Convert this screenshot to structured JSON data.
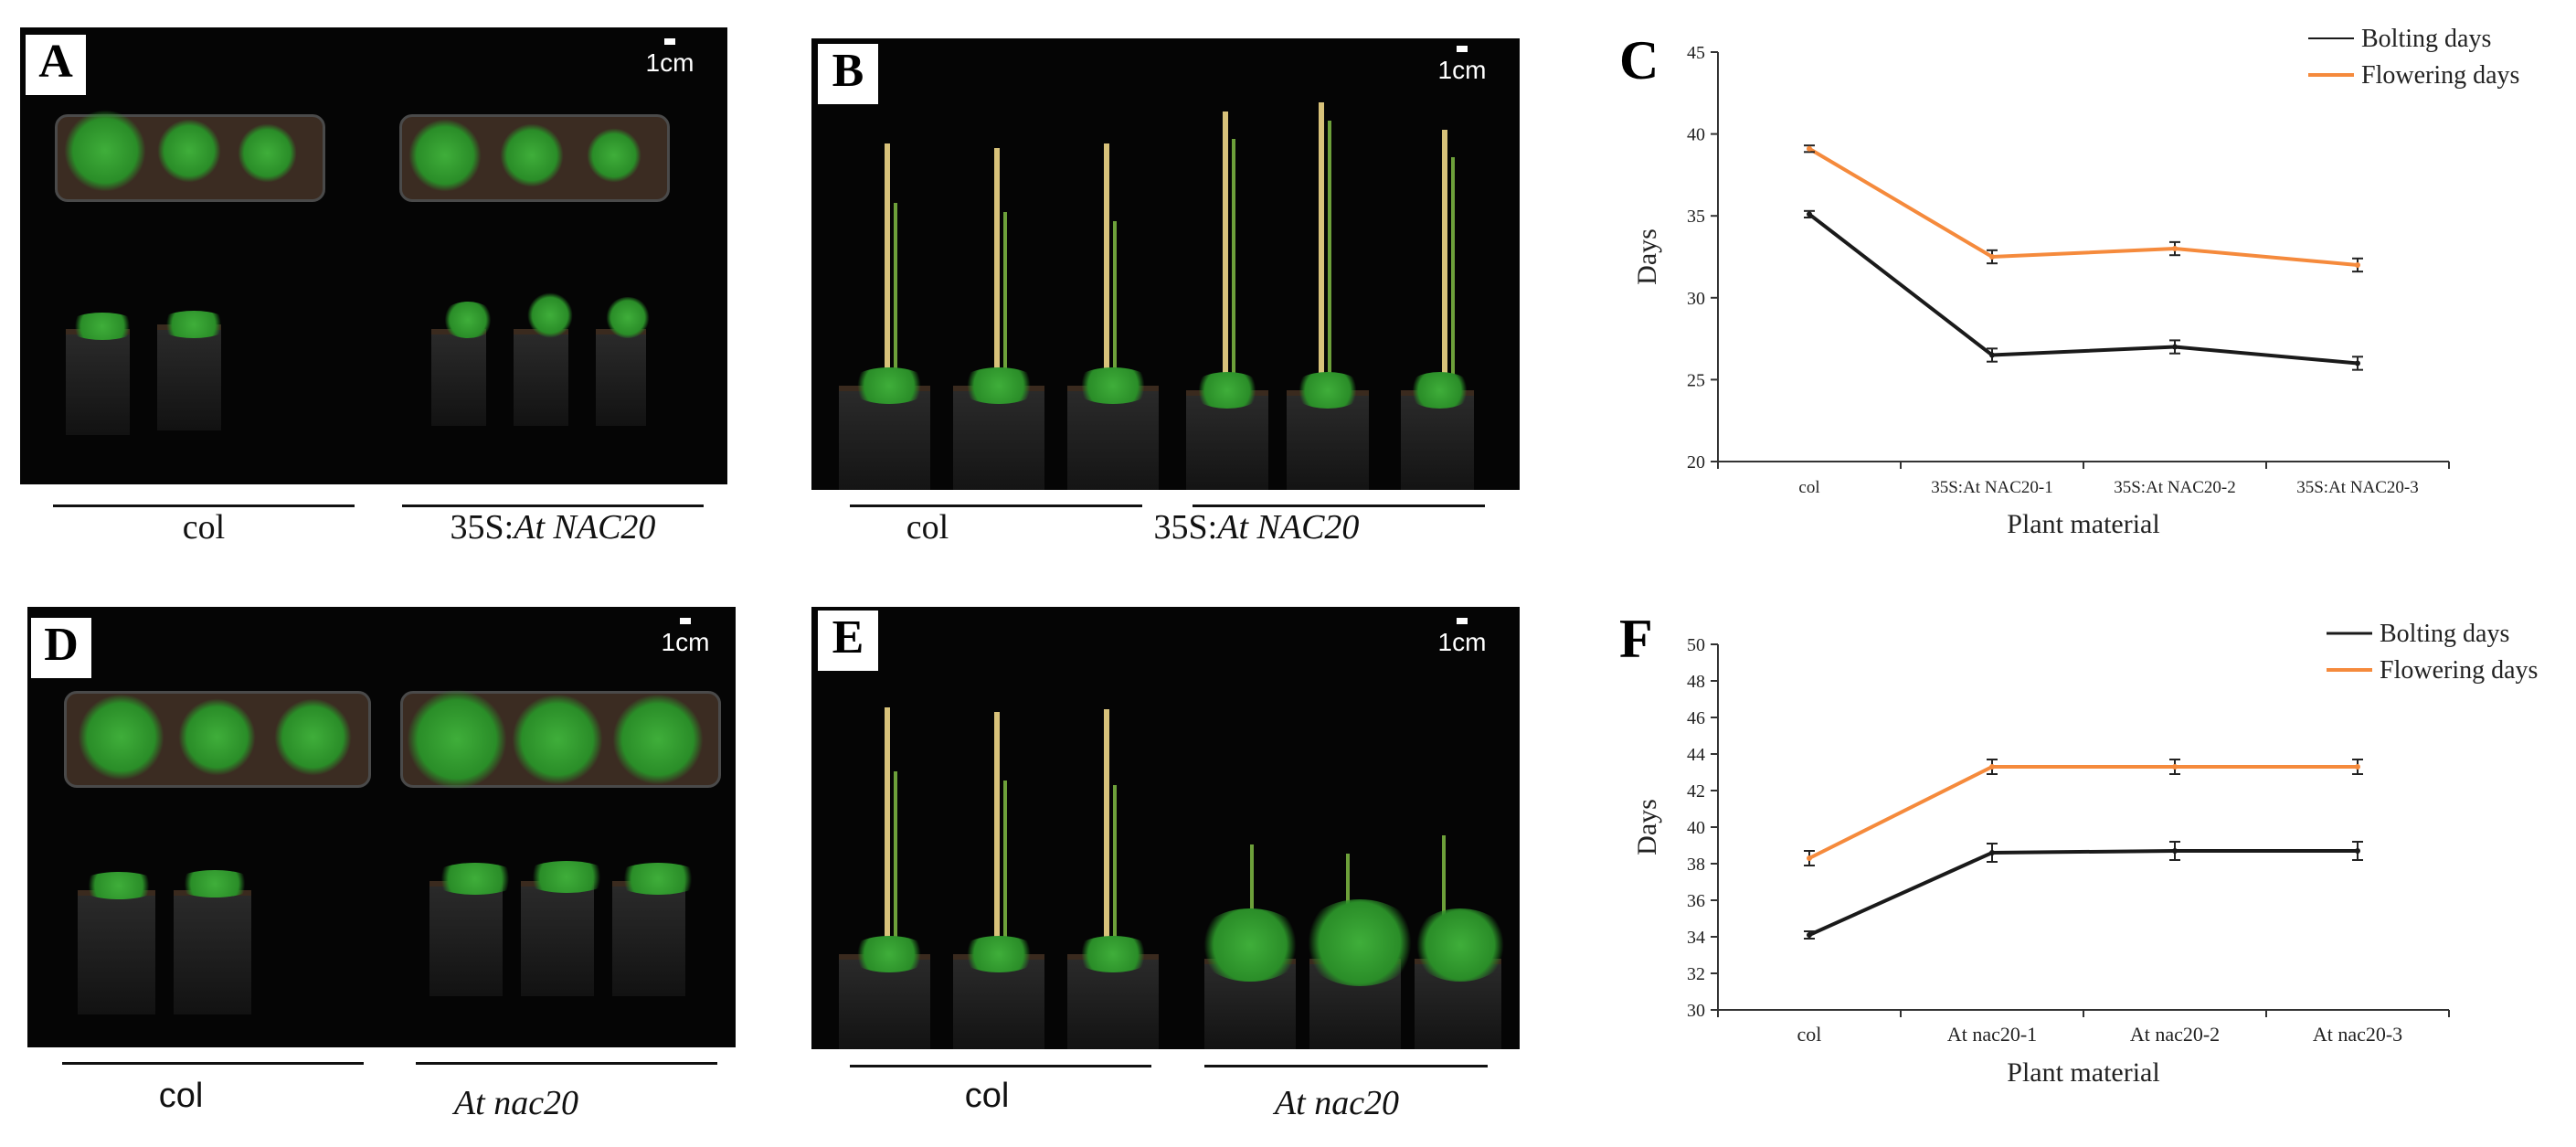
{
  "panels": {
    "A": {
      "letter": "A",
      "scale": "1cm",
      "left_caption": "col",
      "right_caption_prefix": "35S:",
      "right_caption_italic": "At NAC20"
    },
    "B": {
      "letter": "B",
      "scale": "1cm",
      "left_caption": "col",
      "right_caption_prefix": "35S:",
      "right_caption_italic": "At NAC20"
    },
    "D": {
      "letter": "D",
      "scale": "1cm",
      "left_caption": "col",
      "right_caption_italic": "At nac20"
    },
    "E": {
      "letter": "E",
      "scale": "1cm",
      "left_caption": "col",
      "right_caption_italic": "At nac20"
    }
  },
  "chart_data": [
    {
      "panel": "C",
      "type": "line",
      "xlabel": "Plant material",
      "ylabel": "Days",
      "ylim": [
        20,
        45
      ],
      "yticks": [
        20,
        25,
        30,
        35,
        40,
        45
      ],
      "categories": [
        "col",
        "35S:At NAC20-1",
        "35S:At NAC20-2",
        "35S:At NAC20-3"
      ],
      "series": [
        {
          "name": "Bolting days",
          "color": "#1a1a1a",
          "values": [
            35.1,
            26.5,
            27.0,
            26.0
          ],
          "errors": [
            0.2,
            0.4,
            0.4,
            0.4
          ]
        },
        {
          "name": "Flowering days",
          "color": "#f58a3c",
          "values": [
            39.1,
            32.5,
            33.0,
            32.0
          ],
          "errors": [
            0.2,
            0.4,
            0.4,
            0.4
          ]
        }
      ],
      "legend": "top-right"
    },
    {
      "panel": "F",
      "type": "line",
      "xlabel": "Plant material",
      "ylabel": "Days",
      "ylim": [
        30,
        50
      ],
      "yticks": [
        30,
        32,
        34,
        36,
        38,
        40,
        42,
        44,
        46,
        48,
        50
      ],
      "categories": [
        "col",
        "At nac20-1",
        "At nac20-2",
        "At nac20-3"
      ],
      "series": [
        {
          "name": "Bolting days",
          "color": "#1a1a1a",
          "values": [
            34.1,
            38.6,
            38.7,
            38.7
          ],
          "errors": [
            0.2,
            0.5,
            0.5,
            0.5
          ]
        },
        {
          "name": "Flowering days",
          "color": "#f58a3c",
          "values": [
            38.3,
            43.3,
            43.3,
            43.3
          ],
          "errors": [
            0.4,
            0.4,
            0.4,
            0.4
          ]
        }
      ],
      "legend": "top-right"
    }
  ]
}
